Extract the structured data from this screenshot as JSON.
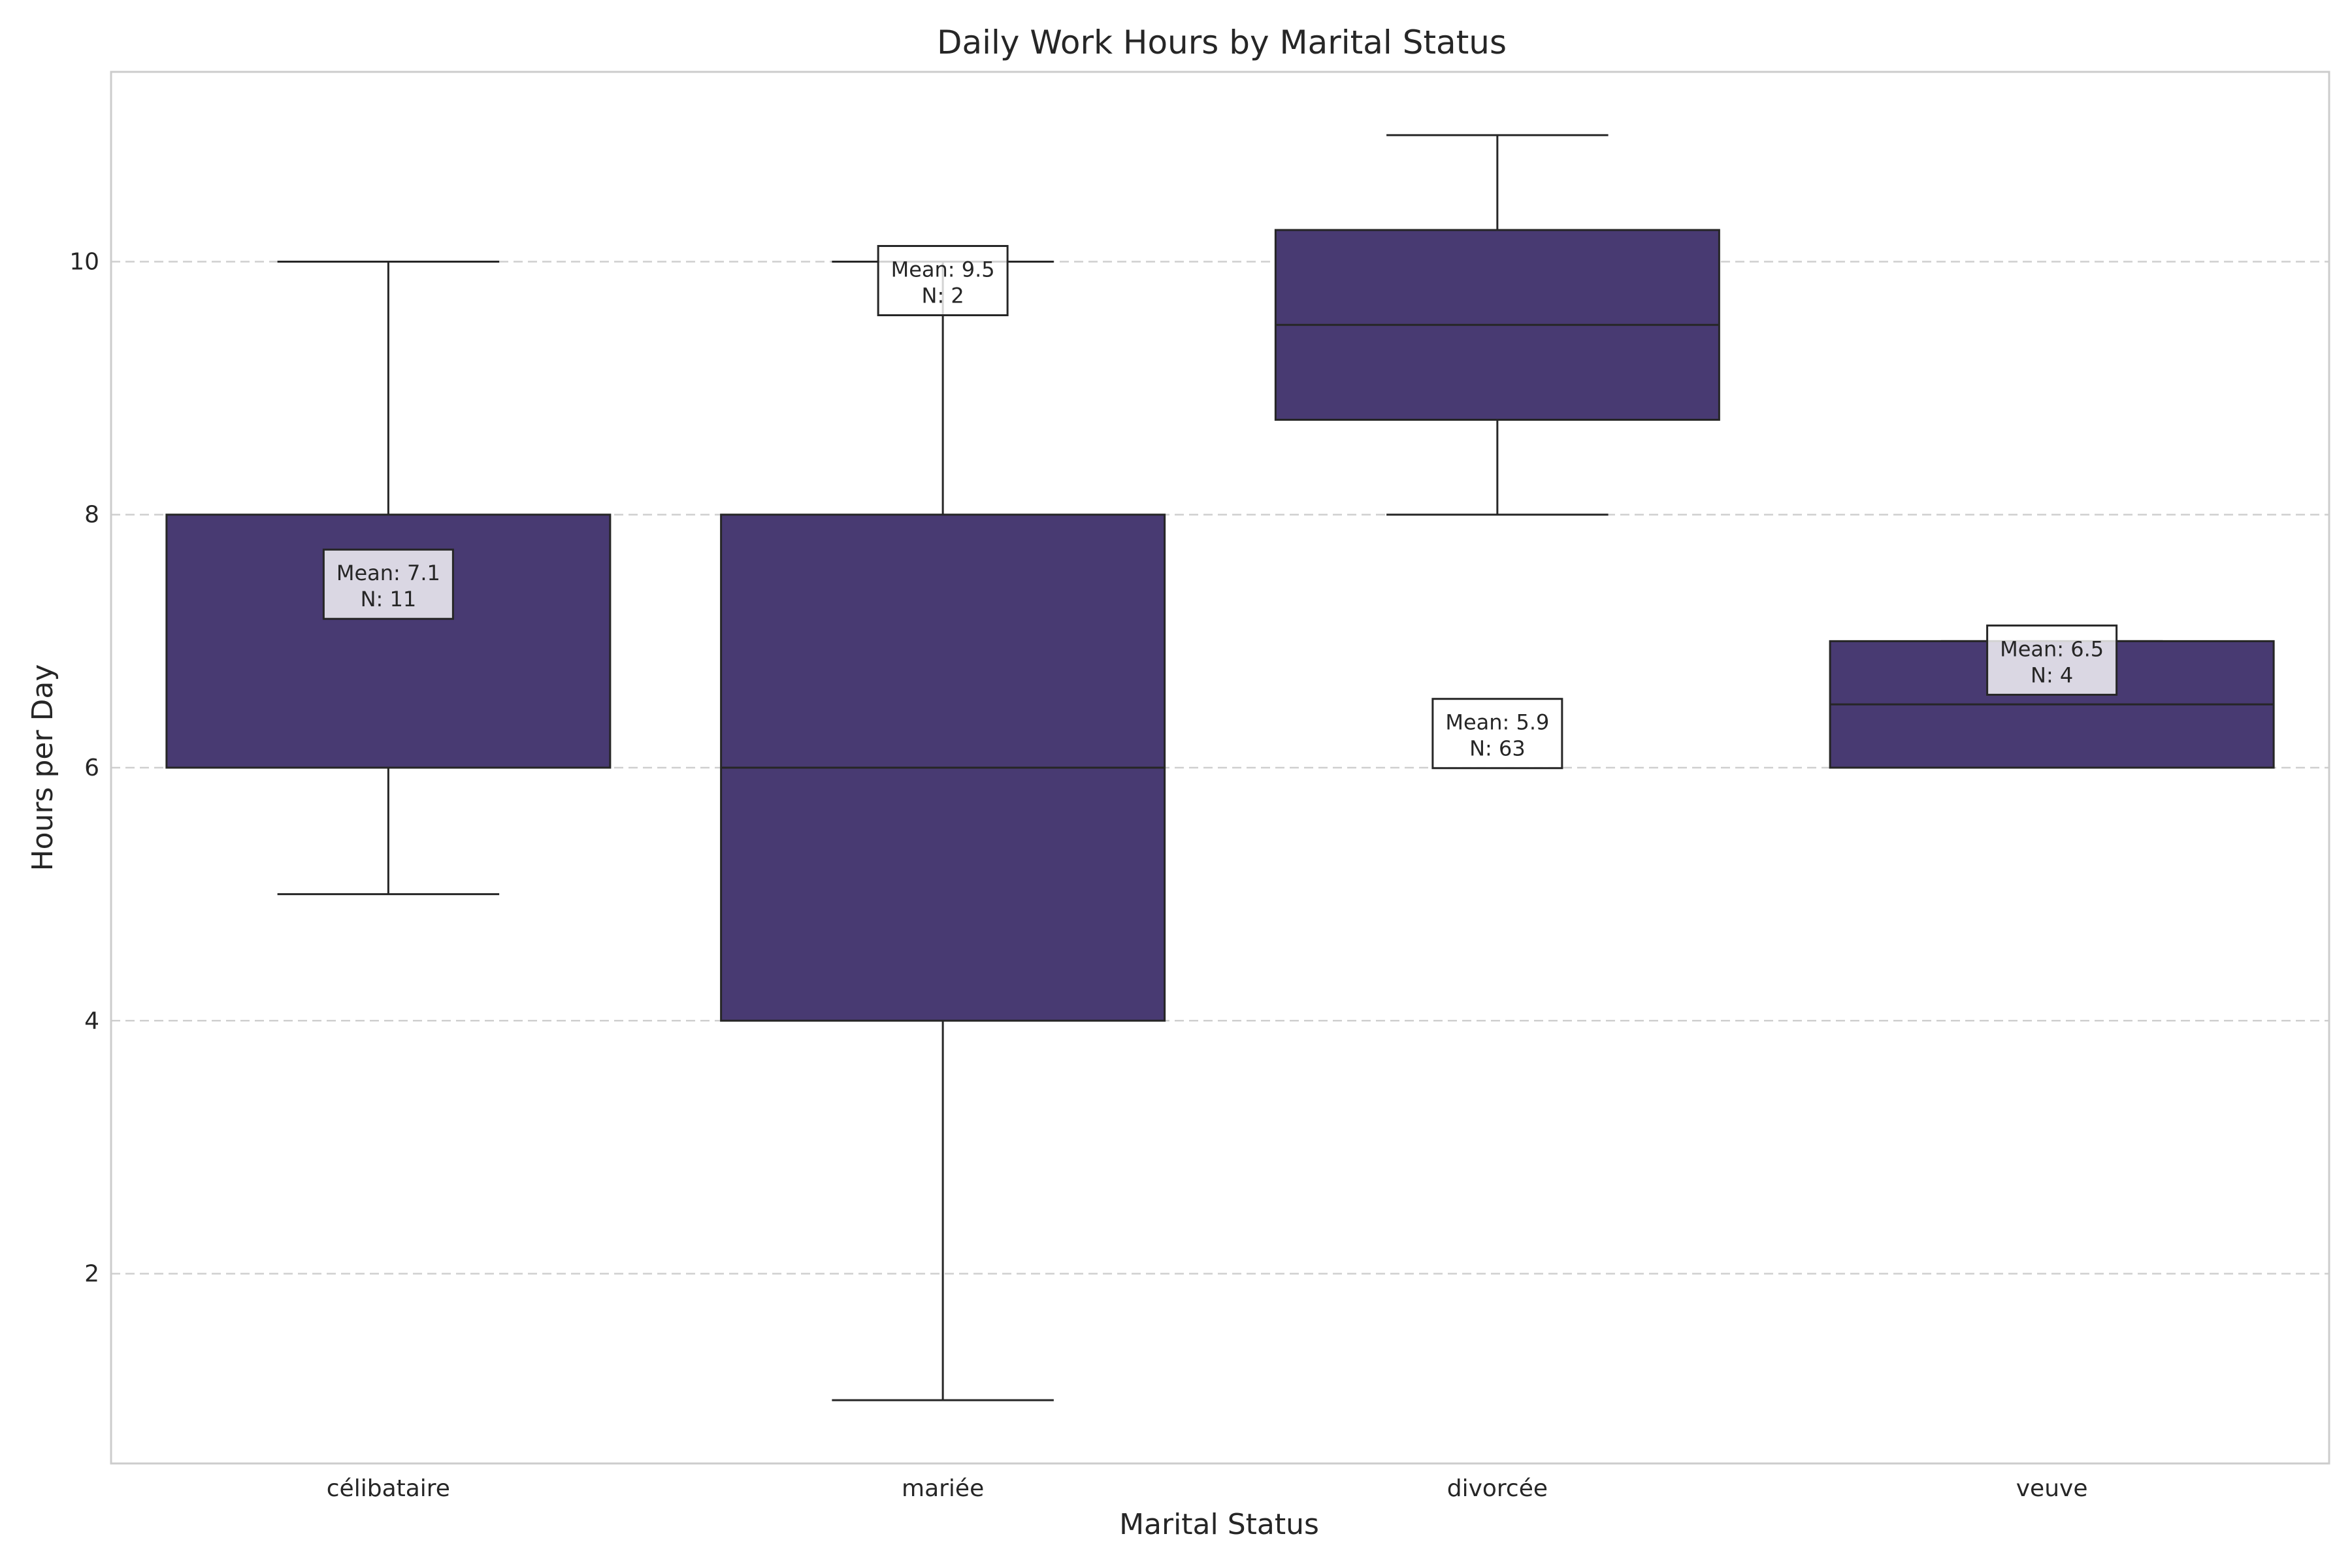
{
  "chart_data": {
    "type": "box",
    "title": "Daily Work Hours by Marital Status",
    "xlabel": "Marital Status",
    "ylabel": "Hours per Day",
    "ylim": [
      0.5,
      11.5
    ],
    "yticks": [
      2,
      4,
      6,
      8,
      10
    ],
    "grid": "y-dashed",
    "categories": [
      "célibataire",
      "mariée",
      "divorcée",
      "veuve"
    ],
    "boxes": [
      {
        "category": "célibataire",
        "whisker_low": 5,
        "q1": 6,
        "median": 6,
        "q3": 8,
        "whisker_high": 10,
        "annotation": {
          "mean_label": "Mean: 7.1",
          "n_label": "N: 11",
          "y": 7.45
        }
      },
      {
        "category": "mariée",
        "whisker_low": 1,
        "q1": 4,
        "median": 6,
        "q3": 8,
        "whisker_high": 10,
        "annotation": {
          "mean_label": "Mean: 9.5",
          "n_label": "N: 2",
          "y": 9.85
        }
      },
      {
        "category": "divorcée",
        "whisker_low": 8,
        "q1": 8.75,
        "median": 9.5,
        "q3": 10.25,
        "whisker_high": 11,
        "annotation": {
          "mean_label": "Mean: 5.9",
          "n_label": "N: 63",
          "y": 6.27
        }
      },
      {
        "category": "veuve",
        "whisker_low": 6,
        "q1": 6,
        "median": 6.5,
        "q3": 7,
        "whisker_high": 7,
        "annotation": {
          "mean_label": "Mean: 6.5",
          "n_label": "N: 4",
          "y": 6.85
        }
      }
    ],
    "colors": {
      "box_fill": "#483a72",
      "line": "#262626"
    }
  }
}
